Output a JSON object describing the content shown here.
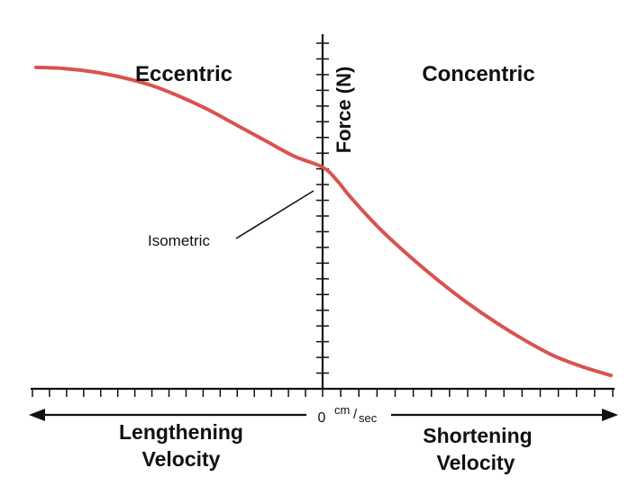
{
  "chart_data": {
    "type": "line",
    "title": "",
    "xlabel_left": [
      "Lengthening",
      "Velocity"
    ],
    "xlabel_right": [
      "Shortening",
      "Velocity"
    ],
    "ylabel": "Force (N)",
    "x_origin_label": "0",
    "x_unit_num": "cm",
    "x_unit_den": "sec",
    "region_left": "Eccentric",
    "region_right": "Concentric",
    "annotation": "Isometric",
    "x_ticks_left": 17,
    "x_ticks_right": 16,
    "y_ticks": 22,
    "series": [
      {
        "name": "force-velocity",
        "color": "#d9534f",
        "points": [
          [
            -1.0,
            1.45
          ],
          [
            -0.9,
            1.445
          ],
          [
            -0.8,
            1.43
          ],
          [
            -0.7,
            1.405
          ],
          [
            -0.6,
            1.37
          ],
          [
            -0.5,
            1.32
          ],
          [
            -0.4,
            1.26
          ],
          [
            -0.3,
            1.19
          ],
          [
            -0.2,
            1.12
          ],
          [
            -0.1,
            1.05
          ],
          [
            0.0,
            1.0
          ],
          [
            0.05,
            0.94
          ],
          [
            0.1,
            0.86
          ],
          [
            0.2,
            0.72
          ],
          [
            0.3,
            0.6
          ],
          [
            0.4,
            0.49
          ],
          [
            0.5,
            0.39
          ],
          [
            0.6,
            0.3
          ],
          [
            0.7,
            0.22
          ],
          [
            0.8,
            0.15
          ],
          [
            0.9,
            0.1
          ],
          [
            1.0,
            0.06
          ]
        ]
      }
    ],
    "xlim": [
      -1.0,
      1.0
    ],
    "ylim": [
      0.0,
      1.6
    ]
  }
}
